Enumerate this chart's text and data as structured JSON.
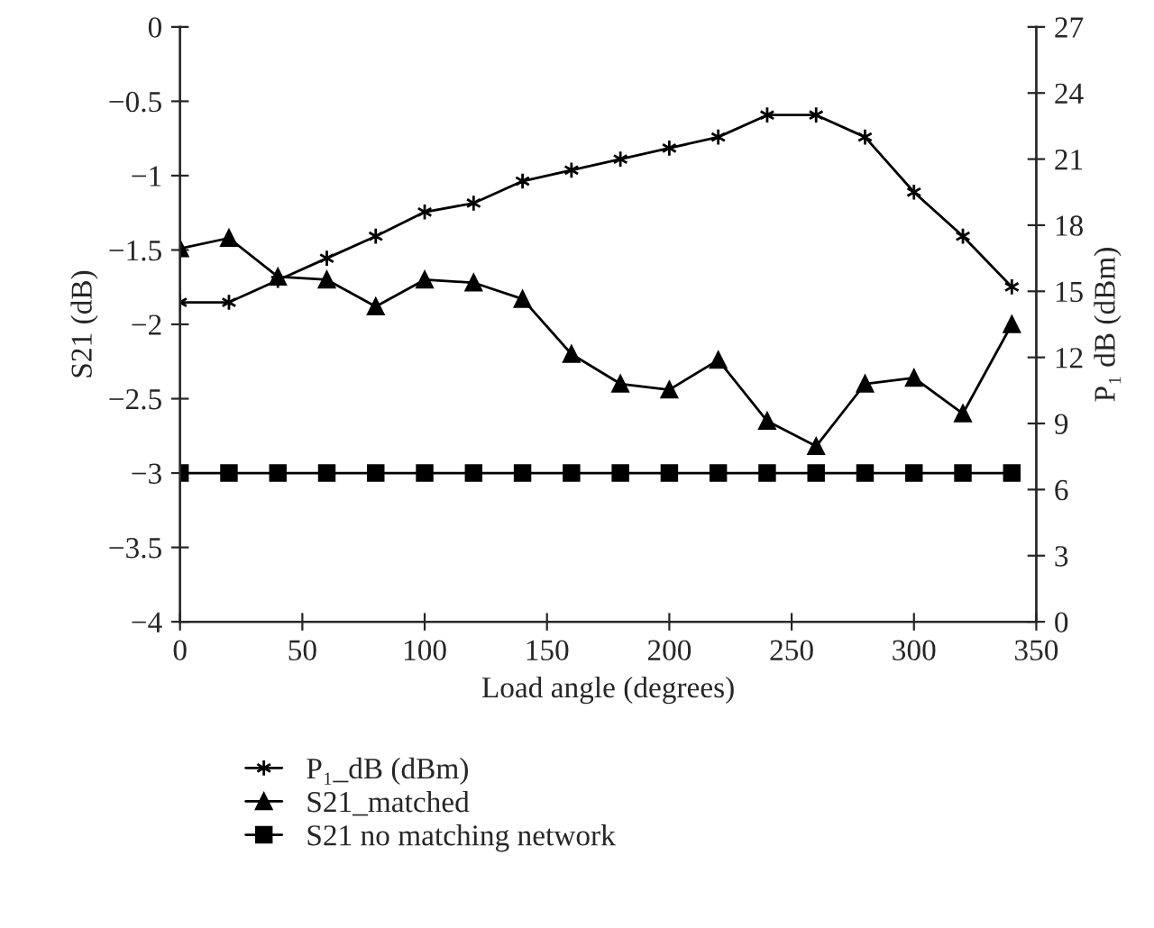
{
  "chart_data": {
    "type": "line",
    "xlabel": "Load angle (degrees)",
    "ylabel": "S21 (dB)",
    "y2label": "P₁ dB (dBm)",
    "x": [
      0,
      20,
      40,
      60,
      80,
      100,
      120,
      140,
      160,
      180,
      200,
      220,
      240,
      260,
      280,
      300,
      320,
      340
    ],
    "series": [
      {
        "name": "P₁_dB (dBm)",
        "color": "#000000",
        "marker": "cross",
        "axis": "y2",
        "values": [
          14.5,
          14.5,
          15.5,
          16.5,
          17.5,
          18.6,
          19.0,
          20.0,
          20.5,
          21.0,
          21.5,
          22.0,
          23.0,
          23.0,
          22.0,
          19.5,
          17.5,
          15.2
        ]
      },
      {
        "name": "S21_matched",
        "color": "#000000",
        "marker": "triangle",
        "values": [
          -1.49,
          -1.42,
          -1.68,
          -1.7,
          -1.88,
          -1.7,
          -1.72,
          -1.83,
          -2.2,
          -2.4,
          -2.44,
          -2.24,
          -2.65,
          -2.82,
          -2.4,
          -2.36,
          -2.6,
          -2.0
        ]
      },
      {
        "name": "S21 no matching network",
        "color": "#000000",
        "marker": "square",
        "values": [
          -3,
          -3,
          -3,
          -3,
          -3,
          -3,
          -3,
          -3,
          -3,
          -3,
          -3,
          -3,
          -3,
          -3,
          -3,
          -3,
          -3,
          -3
        ]
      }
    ],
    "xlim": [
      0,
      350
    ],
    "xticks": [
      0,
      50,
      100,
      150,
      200,
      250,
      300,
      350
    ],
    "ylim": [
      -4,
      0
    ],
    "yticks": [
      {
        "value": -4,
        "label": "−4"
      },
      {
        "value": -3.5,
        "label": "−3.5"
      },
      {
        "value": -3,
        "label": "−3"
      },
      {
        "value": -2.5,
        "label": "−2.5"
      },
      {
        "value": -2,
        "label": "−2"
      },
      {
        "value": -1.5,
        "label": "−1.5"
      },
      {
        "value": -1,
        "label": "−1"
      },
      {
        "value": -0.5,
        "label": "−0.5"
      },
      0
    ],
    "y2lim": [
      0,
      27
    ],
    "y2ticks": [
      0,
      3,
      6,
      9,
      12,
      15,
      18,
      21,
      24,
      27
    ],
    "grid": false,
    "legend": "bottom"
  }
}
